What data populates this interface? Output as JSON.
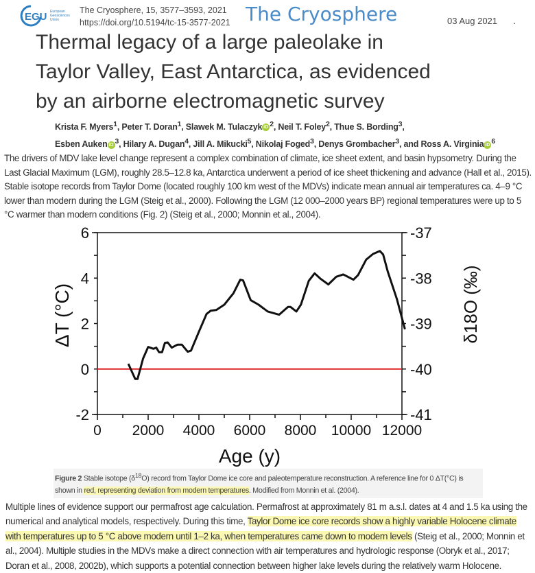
{
  "header": {
    "logo_text": "EGU",
    "logo_subtext": "European Geosciences Union",
    "citation": "The Cryosphere, 15, 3577–3593, 2021",
    "doi": "https://doi.org/10.5194/tc-15-3577-2021",
    "journal_name": "The Cryosphere",
    "date": "03 Aug 2021",
    "dot": "."
  },
  "article": {
    "title_lines": [
      "Thermal legacy of a large paleolake in",
      "Taylor Valley, East Antarctica, as evidenced",
      "by an airborne electromagnetic survey"
    ],
    "authors": [
      {
        "name": "Krista F. Myers",
        "aff": "1",
        "orcid": false,
        "sep": ", "
      },
      {
        "name": "Peter T. Doran",
        "aff": "1",
        "orcid": false,
        "sep": ", "
      },
      {
        "name": "Slawek M. Tulaczyk",
        "aff": "2",
        "orcid": true,
        "sep": ", "
      },
      {
        "name": "Neil T. Foley",
        "aff": "2",
        "orcid": false,
        "sep": ", "
      },
      {
        "name": "Thue S. Bording",
        "aff": "3",
        "orcid": false,
        "sep": ","
      },
      {
        "name": "Esben Auken",
        "aff": "3",
        "orcid": true,
        "sep": ", "
      },
      {
        "name": "Hilary A. Dugan",
        "aff": "4",
        "orcid": false,
        "sep": ", "
      },
      {
        "name": "Jill A. Mikucki",
        "aff": "5",
        "orcid": false,
        "sep": ", "
      },
      {
        "name": "Nikolaj Foged",
        "aff": "3",
        "orcid": false,
        "sep": ", "
      },
      {
        "name": "Denys Grombacher",
        "aff": "3",
        "orcid": false,
        "sep": ", and "
      },
      {
        "name": "Ross A. Virginia",
        "aff": "6",
        "orcid": true,
        "sep": ""
      }
    ],
    "orcid_label": "iD",
    "paragraph1": "The drivers of MDV lake level change represent a complex combination of climate, ice sheet extent, and basin hypsometry. During the Last Glacial Maximum (LGM), roughly 28.5–12.8 ka, Antarctica underwent a period of ice sheet thickening and advance (Hall et al., 2015). Stable isotope records from Taylor Dome (located roughly 100 km west of the MDVs) indicate mean annual air temperatures ca. 4–9 °C lower than modern during the LGM (Steig et al., 2000). Following the LGM (12 000–2000 years BP) regional temperatures were up to 5 °C warmer than modern conditions (Fig. 2) (Steig et al., 2000; Monnin et al., 2004).",
    "caption": {
      "label": "Figure 2",
      "text1": " Stable isotope (δ",
      "sup": "18",
      "text2": "O) record from Taylor Dome ice core and paleotemperature reconstruction. A reference line for 0 ΔT(°C) is shown in ",
      "highlight": "red, representing deviation from modern temperatures",
      "text3": ". Modified from Monnin et al. (2004)."
    },
    "paragraph2": {
      "before": "Multiple lines of evidence support our permafrost age calculation. Permafrost at approximately 81 m a.s.l. dates at 4 and 1.5 ka using the numerical and analytical models, respectively. During this time, ",
      "highlight": "Taylor Dome ice core records show a highly variable Holocene climate with temperatures up to 5 °C above modern until 1–2 ka, when temperatures came down to modern levels",
      "after": " (Steig et al., 2000; Monnin et al., 2004). Multiple studies in the MDVs make a direct connection with air temperatures and hydrologic response (Obryk et al., 2017; Doran et al., 2008, 2002b), which supports a potential connection between higher lake levels during the relatively warm Holocene."
    },
    "highlight_color": "#fbf8b4"
  },
  "chart_data": {
    "type": "line",
    "title": "",
    "xlabel": "Age (y)",
    "ylabel": "ΔT (°C)",
    "y2label": "δ18O (‰)",
    "xlim": [
      0,
      12000
    ],
    "ylim": [
      -2,
      6
    ],
    "y2lim": [
      -41,
      -37
    ],
    "xticks": [
      "0",
      "2000",
      "4000",
      "6000",
      "8000",
      "10000",
      "12000"
    ],
    "yticks": [
      "6",
      "4",
      "2",
      "0",
      "-2"
    ],
    "y2ticks": [
      "-37",
      "-38",
      "-39",
      "-40",
      "-41"
    ],
    "grid": false,
    "reference_line": {
      "y": 0,
      "color": "#e02020"
    },
    "series_color": "#111111",
    "x": [
      1220,
      1490,
      1580,
      1800,
      2000,
      2210,
      2320,
      2430,
      2550,
      2660,
      2770,
      2930,
      3150,
      3330,
      3560,
      3690,
      4010,
      4300,
      4460,
      4690,
      5000,
      5360,
      5630,
      5740,
      6040,
      6350,
      6710,
      7160,
      7510,
      7610,
      7840,
      8020,
      8330,
      8560,
      8780,
      9100,
      9410,
      9690,
      10090,
      10270,
      10590,
      10860,
      11130,
      11260,
      11440,
      11800,
      12120
    ],
    "y": [
      0.23,
      -0.44,
      -0.44,
      0.46,
      0.97,
      0.89,
      0.94,
      0.74,
      0.74,
      1.15,
      1.17,
      0.94,
      1.07,
      1.07,
      0.76,
      0.81,
      1.67,
      2.42,
      2.56,
      2.6,
      2.83,
      3.33,
      3.93,
      3.9,
      3.03,
      2.83,
      2.53,
      2.39,
      2.73,
      2.73,
      2.53,
      2.83,
      3.88,
      4.21,
      3.98,
      3.72,
      4.06,
      4.16,
      3.93,
      4.13,
      4.81,
      5.06,
      5.19,
      5.04,
      4.29,
      3.08,
      1.75
    ]
  }
}
